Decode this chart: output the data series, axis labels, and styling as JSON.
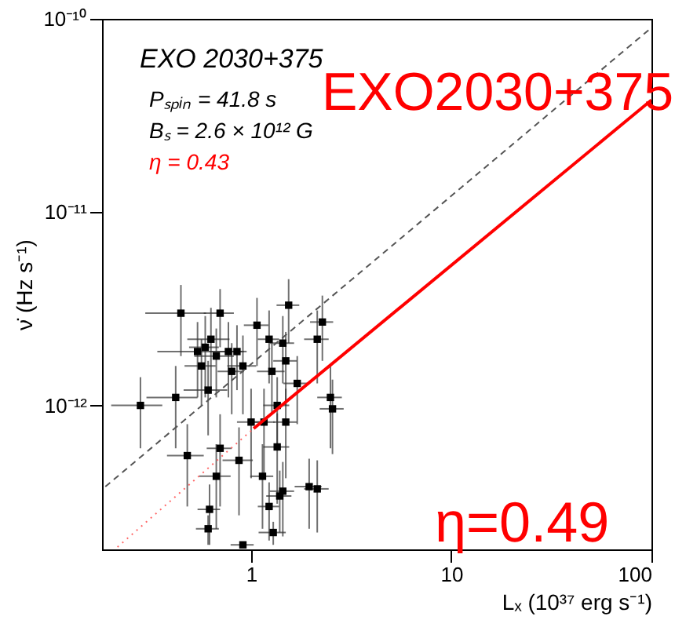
{
  "chart_data": {
    "type": "scatter",
    "xlabel": "Lₓ  (10³⁷ erg s⁻¹)",
    "ylabel": "ν̇  (Hz s⁻¹)",
    "annotations": [
      "EXO 2030+375",
      "Pₛₚᵢₙ = 41.8 s",
      "Bₛ = 2.6 × 10¹² G",
      "η = 0.43",
      "EXO2030+375",
      "η=0.49"
    ],
    "log": "xy",
    "xlim": [
      0.18,
      100
    ],
    "ylim": [
      1.8e-13,
      1e-10
    ],
    "xticks": [
      1,
      10,
      100
    ],
    "yticks": [
      {
        "value": 1e-12,
        "label": "10⁻¹²"
      },
      {
        "value": 1e-11,
        "label": "10⁻¹¹"
      },
      {
        "value": 1e-10,
        "label": "10⁻¹⁰"
      }
    ],
    "series": [
      {
        "type": "scatter",
        "color": "#000000",
        "marker": "square",
        "x": [
          0.446,
          0.7,
          1.54,
          1.07,
          2.27,
          0.54,
          0.63,
          0.59,
          0.565,
          0.67,
          0.77,
          0.85,
          0.8,
          0.91,
          1.23,
          1.44,
          1.49,
          2.14,
          0.28,
          0.42,
          0.61,
          1.0,
          1.16,
          0.48,
          0.7,
          0.87,
          0.67,
          1.14,
          1.44,
          1.95,
          2.14,
          2.49,
          2.55,
          1.27,
          1.7,
          1.35,
          1.49,
          1.35,
          0.62,
          0.61,
          0.91,
          1.23,
          1.29,
          1.39
        ],
        "values": [
          3e-12,
          3e-12,
          3.3e-12,
          2.6e-12,
          2.7e-12,
          1.9e-12,
          2.2e-12,
          2e-12,
          1.6e-12,
          1.8e-12,
          1.9e-12,
          1.9e-12,
          1.5e-12,
          1.6e-12,
          2.2e-12,
          2.1e-12,
          1.7e-12,
          2.2e-12,
          1e-12,
          1.1e-12,
          1.2e-12,
          8.2e-13,
          8.2e-13,
          5.5e-13,
          6e-13,
          5.2e-13,
          4.3e-13,
          4.3e-13,
          3.6e-13,
          3.8e-13,
          3.7e-13,
          1.1e-12,
          9.6e-13,
          1.5e-12,
          1.3e-12,
          1e-12,
          8.2e-13,
          6.1e-13,
          2.9e-13,
          2.3e-13,
          1.9e-13,
          3e-13,
          2.2e-13,
          3.4e-13
        ],
        "errors": [
          1.2e-12,
          1e-12,
          1.2e-12,
          1e-12,
          1e-12,
          8e-13,
          1e-12,
          9e-13,
          6e-13,
          7e-13,
          8e-13,
          7e-13,
          6e-13,
          7e-13,
          9e-13,
          8e-13,
          7e-13,
          9e-13,
          4e-13,
          5e-13,
          5e-13,
          4e-13,
          4e-13,
          2.5e-13,
          3e-13,
          2.5e-13,
          2e-13,
          2e-13,
          1.5e-13,
          1.5e-13,
          1.5e-13,
          5e-13,
          4e-13,
          6e-13,
          5e-13,
          4e-13,
          4e-13,
          3e-13,
          1e-13,
          4e-14,
          null,
          1e-13,
          3e-14,
          1.2e-13
        ],
        "xerrors": [
          0.15,
          0.12,
          0.2,
          0.15,
          0.3,
          0.2,
          0.15,
          0.1,
          0.1,
          0.15,
          0.15,
          0.1,
          0.12,
          0.15,
          0.15,
          0.2,
          0.2,
          0.3,
          0.08,
          0.12,
          0.15,
          0.15,
          0.15,
          0.1,
          0.1,
          0.15,
          0.12,
          0.15,
          0.2,
          0.3,
          0.3,
          0.35,
          0.35,
          0.2,
          0.25,
          0.2,
          0.2,
          0.2,
          0.08,
          0.08,
          0.12,
          0.15,
          0.2,
          0.2
        ]
      },
      {
        "type": "line",
        "color": "#555555",
        "line_style": "dashed",
        "x": [
          0.187,
          100
        ],
        "values": [
          3.8e-13,
          9e-11
        ]
      },
      {
        "type": "line",
        "color": "#ff0000",
        "line_style": "solid",
        "x": [
          1.03,
          100
        ],
        "values": [
          7.6e-13,
          3.8e-11
        ]
      },
      {
        "type": "line",
        "color": "#ff6666",
        "line_style": "dotted",
        "x": [
          0.215,
          1.03
        ],
        "values": [
          1.85e-13,
          7.6e-13
        ]
      }
    ]
  }
}
